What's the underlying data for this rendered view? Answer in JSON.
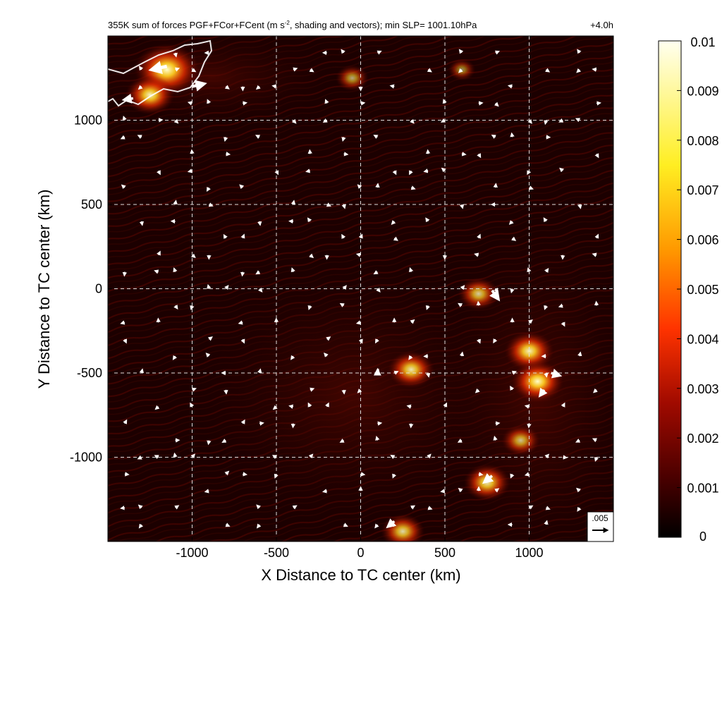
{
  "chart_data": {
    "type": "heatmap",
    "title": "355K sum of forces PGF+FCor+FCent (m s⁻², shading and vectors); min SLP= 1001.10hPa",
    "title_main": "355K sum of forces PGF+FCor+FCent (m s",
    "title_sup": "-2",
    "title_rest": ", shading and vectors); min SLP= 1001.10hPa",
    "time_label": "+4.0h",
    "xlabel": "X Distance to TC center (km)",
    "ylabel": "Y Distance to TC center (km)",
    "xlim": [
      -1500,
      1500
    ],
    "ylim": [
      -1500,
      1500
    ],
    "xticks": [
      -1000,
      -500,
      0,
      500,
      1000
    ],
    "xtick_labels": [
      "-1000",
      "-500",
      "0",
      "500",
      "1000"
    ],
    "yticks": [
      1000,
      500,
      0,
      -500,
      -1000
    ],
    "ytick_labels": [
      "1000",
      "500",
      "0",
      "-500",
      "-1000"
    ],
    "grid": true,
    "colorbar": {
      "min": 0,
      "max": 0.01,
      "ticks": [
        0.01,
        0.009,
        0.008,
        0.007,
        0.006,
        0.005,
        0.004,
        0.003,
        0.002,
        0.001,
        0
      ],
      "tick_labels": [
        "0.01",
        "0.009",
        "0.008",
        "0.007",
        "0.006",
        "0.005",
        "0.004",
        "0.003",
        "0.002",
        "0.001",
        "0"
      ],
      "colors": [
        "#000000",
        "#4a0000",
        "#a00a00",
        "#ff3300",
        "#ff9900",
        "#ffee22",
        "#fffff0"
      ]
    },
    "reference_vector": {
      "label": ".005",
      "magnitude": 0.005
    },
    "hotspots": [
      {
        "x": -1150,
        "y": 1300,
        "value": 0.009
      },
      {
        "x": -1250,
        "y": 1150,
        "value": 0.006
      },
      {
        "x": 300,
        "y": -480,
        "value": 0.0055
      },
      {
        "x": 1000,
        "y": -370,
        "value": 0.006
      },
      {
        "x": 1050,
        "y": -550,
        "value": 0.0065
      },
      {
        "x": 950,
        "y": -900,
        "value": 0.004
      },
      {
        "x": 750,
        "y": -1150,
        "value": 0.0055
      },
      {
        "x": 250,
        "y": -1440,
        "value": 0.005
      },
      {
        "x": 700,
        "y": -30,
        "value": 0.0045
      },
      {
        "x": -50,
        "y": 1250,
        "value": 0.003
      },
      {
        "x": 600,
        "y": 1300,
        "value": 0.002
      }
    ],
    "vectors": [
      {
        "x": -1150,
        "y": 1320,
        "u": -0.0045,
        "v": -0.001
      },
      {
        "x": -1000,
        "y": 1200,
        "u": 0.0035,
        "v": 0.0008
      },
      {
        "x": -1350,
        "y": 1130,
        "u": -0.0025,
        "v": -0.0004
      },
      {
        "x": 780,
        "y": -10,
        "u": 0.0018,
        "v": -0.0025
      },
      {
        "x": 1130,
        "y": -500,
        "u": 0.0024,
        "v": -0.0007
      },
      {
        "x": 1090,
        "y": -600,
        "u": -0.0012,
        "v": -0.0016
      },
      {
        "x": 780,
        "y": -1110,
        "u": -0.0022,
        "v": -0.0018
      },
      {
        "x": 200,
        "y": -1380,
        "u": -0.0018,
        "v": -0.0015
      },
      {
        "x": 100,
        "y": -510,
        "u": 0.0,
        "v": 0.0012
      }
    ]
  }
}
